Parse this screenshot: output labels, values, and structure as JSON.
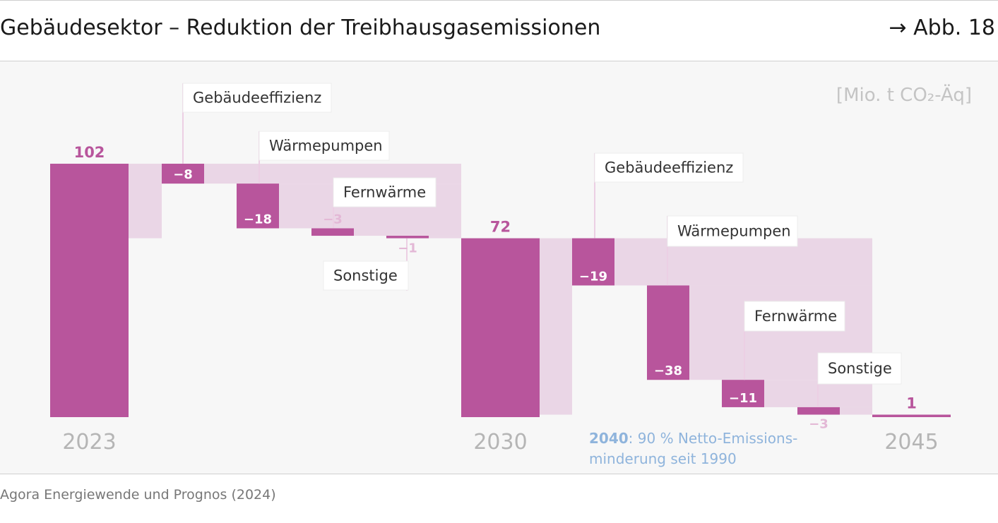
{
  "header": {
    "title": "Gebäudesektor – Reduktion der Treibhausgasemissionen",
    "figure_ref": "→ Abb. 18"
  },
  "source": "Agora Energiewende und Prognos (2024)",
  "annotation": {
    "bold": "2040",
    "line1_rest": ": 90 % Netto-Emissions-",
    "line2": "minderung seit 1990"
  },
  "colors": {
    "bar": "#b8559c",
    "connector": "#ead6e6",
    "faint_label": "#e3b8d6",
    "axis_label": "#b5b5b5",
    "note": "#8fb4dc",
    "unit": "#c4c4c4"
  },
  "chart_data": {
    "type": "waterfall",
    "title": "Gebäudesektor – Reduktion der Treibhausgasemissionen",
    "unit_label": "[Mio. t CO₂-Äq]",
    "ylim": [
      0,
      105
    ],
    "totals": [
      {
        "year": "2023",
        "value": 102,
        "label": "102"
      },
      {
        "year": "2030",
        "value": 72,
        "label": "72"
      },
      {
        "year": "2045",
        "value": 1,
        "label": "1"
      }
    ],
    "steps": [
      {
        "period": "2023-2030",
        "category": "Gebäudeeffizienz",
        "value": -8,
        "label": "−8"
      },
      {
        "period": "2023-2030",
        "category": "Wärmepumpen",
        "value": -18,
        "label": "−18"
      },
      {
        "period": "2023-2030",
        "category": "Fernwärme",
        "value": -3,
        "label": "−3"
      },
      {
        "period": "2023-2030",
        "category": "Sonstige",
        "value": -1,
        "label": "−1"
      },
      {
        "period": "2030-2045",
        "category": "Gebäudeeffizienz",
        "value": -19,
        "label": "−19"
      },
      {
        "period": "2030-2045",
        "category": "Wärmepumpen",
        "value": -38,
        "label": "−38"
      },
      {
        "period": "2030-2045",
        "category": "Fernwärme",
        "value": -11,
        "label": "−11"
      },
      {
        "period": "2030-2045",
        "category": "Sonstige",
        "value": -3,
        "label": "−3"
      }
    ]
  }
}
